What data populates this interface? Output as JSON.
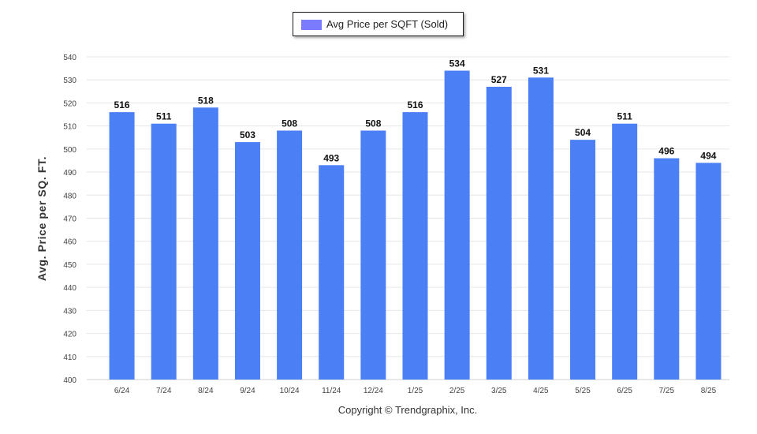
{
  "chart_data": {
    "type": "bar",
    "categories": [
      "6/24",
      "7/24",
      "8/24",
      "9/24",
      "10/24",
      "11/24",
      "12/24",
      "1/25",
      "2/25",
      "3/25",
      "4/25",
      "5/25",
      "6/25",
      "7/25",
      "8/25"
    ],
    "series": [
      {
        "name": "Avg Price per SQFT (Sold)",
        "values": [
          516,
          511,
          518,
          503,
          508,
          493,
          508,
          516,
          534,
          527,
          531,
          504,
          511,
          496,
          494
        ]
      }
    ],
    "ylabel": "Avg. Price per SQ. FT.",
    "xlabel": "",
    "ylim": [
      400,
      540
    ],
    "yticks": [
      400,
      410,
      420,
      430,
      440,
      450,
      460,
      470,
      480,
      490,
      500,
      510,
      520,
      530,
      540
    ],
    "grid": true,
    "legend_position": "top-center",
    "data_labels": true,
    "colors": {
      "bar": "#4a7ff5",
      "legend_swatch": "#7a7bff",
      "grid": "#e6e6e6"
    }
  },
  "footer": {
    "copyright": "Copyright © Trendgraphix, Inc."
  }
}
